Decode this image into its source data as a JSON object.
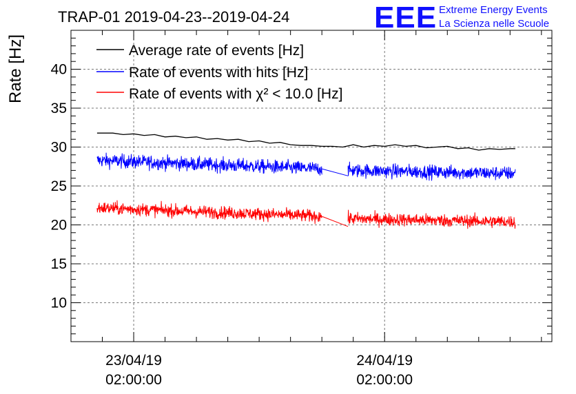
{
  "logo": {
    "mark": "EEE",
    "line1": "Extreme Energy Events",
    "line2": "La Scienza nelle Scuole",
    "color": "#1010ff"
  },
  "chart_data": {
    "type": "line",
    "title": "TRAP-01 2019-04-23--2019-04-24",
    "xlabel": "",
    "ylabel": "Rate [Hz]",
    "ylim": [
      5,
      45
    ],
    "yticks": [
      10,
      15,
      20,
      25,
      30,
      35,
      40
    ],
    "xticks": [
      {
        "date": "23/04/19",
        "time": "02:00:00",
        "hours": 0
      },
      {
        "date": "24/04/19",
        "time": "02:00:00",
        "hours": 24
      }
    ],
    "xlim_hours": [
      -6,
      40
    ],
    "grid": true,
    "legend_position": "top-left",
    "series": [
      {
        "name": "Average rate of events [Hz]",
        "color": "#000000",
        "x_hours": [
          -3.5,
          -2,
          -1,
          0,
          1,
          2,
          3,
          4,
          5,
          6,
          7,
          8,
          9,
          10,
          11,
          12,
          13,
          14,
          15,
          16,
          17,
          18,
          19,
          20,
          21,
          22,
          23,
          24,
          25,
          26,
          27,
          28,
          29,
          30,
          31,
          32,
          33,
          34,
          35,
          36,
          36.5
        ],
        "values": [
          31.8,
          31.8,
          31.6,
          31.7,
          31.5,
          31.6,
          31.3,
          31.4,
          31.2,
          31.3,
          31.0,
          31.1,
          30.9,
          31.0,
          30.7,
          30.8,
          30.5,
          30.6,
          30.3,
          30.2,
          30.2,
          30.1,
          30.1,
          30.0,
          30.3,
          30.0,
          30.2,
          30.1,
          30.3,
          30.1,
          30.2,
          29.9,
          30.0,
          30.1,
          29.8,
          29.9,
          29.6,
          29.8,
          29.7,
          29.8,
          29.8
        ]
      },
      {
        "name": "Rate of events with hits [Hz]",
        "color": "#0000ff",
        "segments": [
          {
            "x_start_hours": -3.5,
            "x_end_hours": 18,
            "mean_start": 28.3,
            "mean_end": 27.2,
            "spread": 1.1
          },
          {
            "x_start_hours": 18,
            "x_end_hours": 20.5,
            "mean_start": 27.2,
            "mean_end": 26.3,
            "spread": 0
          },
          {
            "x_start_hours": 20.5,
            "x_end_hours": 36.5,
            "mean_start": 27.0,
            "mean_end": 26.6,
            "spread": 1.1
          }
        ]
      },
      {
        "name": "Rate of events with χ² < 10.0 [Hz]",
        "color": "#ff0000",
        "segments": [
          {
            "x_start_hours": -3.5,
            "x_end_hours": 18,
            "mean_start": 22.2,
            "mean_end": 21.1,
            "spread": 1.0
          },
          {
            "x_start_hours": 18,
            "x_end_hours": 20.5,
            "mean_start": 21.1,
            "mean_end": 19.8,
            "spread": 0
          },
          {
            "x_start_hours": 20.5,
            "x_end_hours": 36.5,
            "mean_start": 20.8,
            "mean_end": 20.4,
            "spread": 1.0
          }
        ]
      }
    ]
  }
}
